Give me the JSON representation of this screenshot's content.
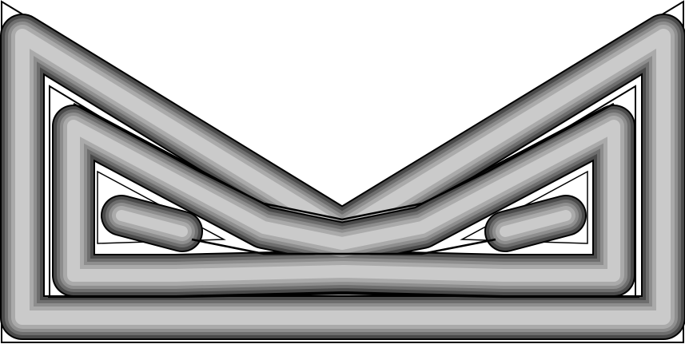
{
  "figure": {
    "description_icon": "toolpath-offset-icon",
    "colors": {
      "background": "#ffffff",
      "outline": "#000000",
      "band_dark": "#4a4a4a",
      "band_mid_dark": "#6e6e6e",
      "band_mid": "#8e8e8e",
      "band_mid_light": "#aaaaaa",
      "band_light": "#cacaca"
    }
  }
}
